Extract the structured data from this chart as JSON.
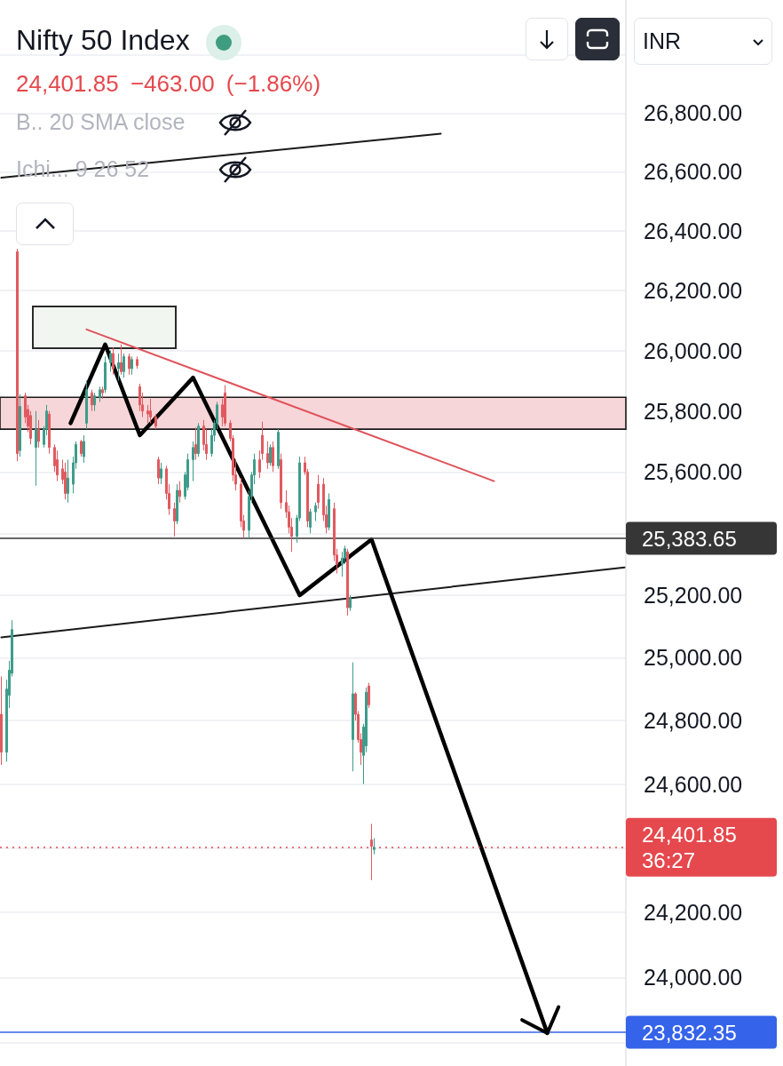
{
  "chart_data": {
    "type": "candlestick",
    "title": "Nifty 50 Index",
    "subtitle": "24,401.85 −463.00 (−1.86%)",
    "annotations": [
      "B.. 20 SMA close",
      "Ichi... 9 26 52",
      "INR"
    ],
    "categories": [
      null,
      null,
      null,
      null,
      null,
      null,
      null,
      null,
      null,
      null,
      null,
      null,
      null,
      null,
      null,
      null,
      null,
      null,
      null,
      null,
      null,
      null,
      null,
      null,
      null,
      null,
      null,
      null,
      null,
      null,
      null,
      null,
      null,
      null,
      null,
      null,
      null,
      null,
      null,
      null,
      null,
      null,
      null,
      null,
      null,
      null,
      null,
      null,
      null,
      null,
      null,
      null,
      null,
      null,
      null,
      null,
      null,
      null,
      null,
      null,
      null,
      null,
      null,
      null,
      null,
      null,
      null,
      null,
      null,
      null,
      null,
      null,
      null,
      null,
      null,
      null,
      null,
      null,
      null,
      null,
      null,
      null,
      null,
      null,
      null,
      null,
      null,
      null,
      null,
      null,
      null,
      null,
      null,
      null,
      null,
      null,
      null,
      null,
      null,
      null,
      null,
      null,
      null,
      null,
      null,
      null,
      null,
      null,
      null,
      null,
      null,
      null,
      null,
      null,
      null,
      null,
      null,
      null,
      null,
      null,
      null,
      null,
      null,
      null,
      null,
      null,
      null,
      null,
      null,
      null,
      null,
      null,
      null,
      null,
      null,
      null,
      null,
      null,
      null,
      null,
      null,
      null,
      null,
      null,
      null,
      null,
      null,
      null,
      null,
      null,
      null,
      null,
      null,
      null,
      null,
      null,
      null,
      null,
      null,
      null,
      null,
      null,
      null,
      null,
      null,
      null,
      null,
      null,
      null,
      null,
      null,
      null,
      null,
      null,
      null,
      null,
      null,
      null,
      null,
      null,
      null,
      null,
      null,
      null,
      null,
      null,
      null,
      null,
      null,
      null,
      null,
      null,
      null,
      null,
      null,
      null,
      null,
      null,
      null,
      null,
      null,
      null,
      null,
      null,
      null,
      null,
      null,
      null,
      null,
      null,
      null,
      null,
      null,
      null,
      null,
      null,
      null,
      null,
      null,
      null,
      null,
      null,
      null,
      null,
      null,
      null,
      null,
      null,
      null,
      null,
      null,
      null,
      null,
      null,
      null
    ],
    "ohlc": [
      [
        24820,
        24940,
        24660,
        24700
      ],
      null,
      [
        24700,
        24930,
        24670,
        24900
      ],
      [
        24880,
        24990,
        24840,
        24960
      ],
      [
        24950,
        25120,
        24940,
        25090
      ],
      null,
      [
        26330,
        26340,
        25635,
        25660
      ],
      [
        25670,
        25855,
        25650,
        25815
      ],
      null,
      [
        25850,
        25860,
        25760,
        25780
      ],
      [
        25805,
        25820,
        25730,
        25750
      ],
      [
        25785,
        25800,
        25690,
        25710
      ],
      null,
      [
        25680,
        25800,
        25555,
        25740
      ],
      [
        25740,
        25770,
        25680,
        25700
      ],
      null,
      [
        25690,
        25750,
        25680,
        25740
      ],
      [
        25740,
        25820,
        25720,
        25800
      ],
      [
        25790,
        25800,
        25660,
        25680
      ],
      null,
      [
        25680,
        25690,
        25600,
        25620
      ],
      [
        25640,
        25670,
        25570,
        25590
      ],
      null,
      [
        25610,
        25640,
        25560,
        25575
      ],
      [
        25600,
        25630,
        25510,
        25530
      ],
      [
        25530,
        25640,
        25500,
        25580
      ],
      null,
      [
        25560,
        25650,
        25530,
        25630
      ],
      [
        25630,
        25700,
        25610,
        25690
      ],
      null,
      [
        25700,
        25705,
        25650,
        25660
      ],
      [
        25650,
        25720,
        25630,
        25700
      ],
      [
        25760,
        25900,
        25740,
        25870
      ],
      null,
      [
        25860,
        25870,
        25800,
        25820
      ],
      [
        25820,
        25860,
        25800,
        25850
      ],
      null,
      [
        25845,
        25880,
        25830,
        25870
      ],
      [
        25870,
        25880,
        25840,
        25860
      ],
      [
        25870,
        25980,
        25860,
        25960
      ],
      null,
      [
        25960,
        26000,
        25930,
        25990
      ],
      [
        25990,
        26010,
        25920,
        25940
      ],
      null,
      [
        25940,
        25990,
        25900,
        25960
      ],
      [
        25960,
        26020,
        25920,
        25930
      ],
      [
        25930,
        25990,
        25910,
        25980
      ],
      null,
      [
        25980,
        25990,
        25920,
        25940
      ],
      [
        25940,
        25980,
        25920,
        25970
      ],
      null,
      [
        25970,
        25980,
        25940,
        25950
      ],
      [
        25880,
        25890,
        25800,
        25820
      ],
      [
        25820,
        25860,
        25780,
        25800
      ],
      null,
      [
        25800,
        25820,
        25760,
        25790
      ],
      [
        25800,
        25840,
        25760,
        25780
      ],
      null,
      [
        25780,
        25790,
        25740,
        25750
      ],
      [
        25640,
        25650,
        25560,
        25580
      ],
      [
        25580,
        25630,
        25560,
        25610
      ],
      null,
      [
        25610,
        25620,
        25510,
        25530
      ],
      [
        25530,
        25560,
        25460,
        25480
      ],
      null,
      [
        25480,
        25500,
        25390,
        25440
      ],
      [
        25440,
        25560,
        25430,
        25540
      ],
      [
        25540,
        25570,
        25500,
        25520
      ],
      null,
      [
        25520,
        25600,
        25510,
        25590
      ],
      [
        25550,
        25660,
        25540,
        25640
      ],
      null,
      [
        25640,
        25700,
        25570,
        25680
      ],
      [
        25690,
        25745,
        25640,
        25660
      ],
      [
        25660,
        25760,
        25650,
        25750
      ],
      null,
      [
        25750,
        25770,
        25670,
        25690
      ],
      [
        25690,
        25740,
        25640,
        25660
      ],
      null,
      [
        25660,
        25740,
        25650,
        25720
      ],
      [
        25720,
        25770,
        25700,
        25760
      ],
      [
        25760,
        25830,
        25740,
        25820
      ],
      null,
      [
        25820,
        25840,
        25750,
        25780
      ],
      [
        25860,
        25885,
        25750,
        25760
      ],
      null,
      [
        25760,
        25770,
        25700,
        25710
      ],
      [
        25710,
        25720,
        25570,
        25590
      ],
      [
        25590,
        25640,
        25540,
        25560
      ],
      null,
      [
        25560,
        25580,
        25420,
        25440
      ],
      [
        25440,
        25460,
        25385,
        25410
      ],
      null,
      [
        25410,
        25540,
        25385,
        25520
      ],
      [
        25520,
        25600,
        25500,
        25590
      ],
      [
        25590,
        25660,
        25560,
        25640
      ],
      null,
      [
        25640,
        25670,
        25580,
        25600
      ],
      [
        25720,
        25765,
        25640,
        25660
      ],
      null,
      [
        25660,
        25700,
        25610,
        25630
      ],
      [
        25630,
        25690,
        25620,
        25680
      ],
      [
        25680,
        25700,
        25600,
        25620
      ],
      null,
      [
        25620,
        25740,
        25610,
        25730
      ],
      [
        25640,
        25660,
        25480,
        25500
      ],
      null,
      [
        25500,
        25540,
        25450,
        25470
      ],
      [
        25470,
        25490,
        25400,
        25420
      ],
      [
        25420,
        25450,
        25340,
        25390
      ],
      null,
      [
        25390,
        25460,
        25370,
        25450
      ],
      [
        25450,
        25650,
        25440,
        25630
      ],
      null,
      [
        25630,
        25650,
        25590,
        25600
      ],
      [
        25600,
        25610,
        25420,
        25440
      ],
      [
        25420,
        25480,
        25400,
        25470
      ],
      null,
      [
        25470,
        25500,
        25440,
        25490
      ],
      [
        25560,
        25590,
        25480,
        25500
      ],
      null,
      [
        25560,
        25580,
        25440,
        25460
      ],
      [
        25460,
        25490,
        25400,
        25420
      ],
      [
        25420,
        25530,
        25410,
        25510
      ],
      null,
      [
        25480,
        25500,
        25310,
        25330
      ],
      [
        25330,
        25350,
        25270,
        25300
      ],
      null,
      [
        25300,
        25340,
        25260,
        25320
      ],
      [
        25320,
        25360,
        25300,
        25350
      ],
      [
        25340,
        25350,
        25135,
        25160
      ],
      [
        25160,
        25200,
        25150,
        25190
      ],
      [
        24740,
        24985,
        24640,
        24885
      ],
      [
        24885,
        24890,
        24800,
        24820
      ],
      [
        24820,
        24830,
        24730,
        24740
      ],
      [
        24740,
        24760,
        24660,
        24700
      ],
      [
        24690,
        24790,
        24600,
        24780
      ],
      [
        24720,
        24905,
        24700,
        24890
      ],
      [
        24910,
        24920,
        24840,
        24850
      ],
      [
        24425,
        24475,
        24300,
        24405
      ],
      [
        24395,
        24430,
        24380,
        24401.85
      ],
      null,
      null,
      null,
      null,
      null,
      null,
      null,
      null,
      null,
      null,
      null,
      null,
      null,
      null,
      null,
      null,
      null,
      null,
      null,
      null,
      null,
      null,
      null,
      null,
      null,
      null,
      null,
      null,
      null,
      null,
      null,
      null,
      null,
      null,
      null,
      null,
      null,
      null,
      null,
      null,
      null,
      null,
      null,
      null,
      null,
      null,
      null,
      null,
      null,
      null,
      null,
      null,
      null,
      null,
      null,
      null,
      null,
      null,
      null,
      null,
      null,
      null,
      null,
      null,
      null,
      null,
      null,
      null,
      null,
      null,
      null,
      null,
      null,
      null,
      null,
      null,
      null,
      null,
      null,
      null,
      null,
      null,
      null,
      null,
      null,
      null,
      null,
      null,
      null,
      null,
      null,
      null,
      null,
      null
    ],
    "colors": [
      "#e05a60",
      null,
      "#3f9c8a",
      "#3f9c8a",
      "#3f9c8a",
      null,
      "#e05a60",
      "#3f9c8a",
      null,
      "#e05a60",
      "#e05a60",
      "#e05a60",
      null,
      "#3f9c8a",
      "#e05a60",
      null,
      "#3f9c8a",
      "#3f9c8a",
      "#e05a60",
      null,
      "#e05a60",
      "#e05a60",
      null,
      "#e05a60",
      "#e05a60",
      "#3f9c8a",
      null,
      "#3f9c8a",
      "#3f9c8a",
      null,
      "#e05a60",
      "#3f9c8a",
      "#3f9c8a",
      null,
      "#e05a60",
      "#3f9c8a",
      null,
      "#3f9c8a",
      "#e05a60",
      "#3f9c8a",
      null,
      "#3f9c8a",
      "#e05a60",
      null,
      "#3f9c8a",
      "#e05a60",
      "#3f9c8a",
      null,
      "#e05a60",
      "#3f9c8a",
      null,
      "#e05a60",
      "#e05a60",
      "#e05a60",
      null,
      "#e05a60",
      "#e05a60",
      null,
      "#e05a60",
      "#e05a60",
      "#3f9c8a",
      null,
      "#e05a60",
      "#e05a60",
      null,
      "#e05a60",
      "#3f9c8a",
      "#e05a60",
      null,
      "#3f9c8a",
      "#3f9c8a",
      null,
      "#3f9c8a",
      "#e05a60",
      "#3f9c8a",
      null,
      "#e05a60",
      "#e05a60",
      null,
      "#3f9c8a",
      "#3f9c8a",
      "#3f9c8a",
      null,
      "#e05a60",
      "#e05a60",
      null,
      "#e05a60",
      "#e05a60",
      "#e05a60",
      null,
      "#e05a60",
      "#e05a60",
      null,
      "#3f9c8a",
      "#3f9c8a",
      "#3f9c8a",
      null,
      "#e05a60",
      "#e05a60",
      null,
      "#e05a60",
      "#3f9c8a",
      "#e05a60",
      null,
      "#3f9c8a",
      "#e05a60",
      null,
      "#e05a60",
      "#e05a60",
      "#e05a60",
      null,
      "#3f9c8a",
      "#3f9c8a",
      null,
      "#e05a60",
      "#e05a60",
      "#3f9c8a",
      null,
      "#3f9c8a",
      "#e05a60",
      null,
      "#e05a60",
      "#e05a60",
      "#3f9c8a",
      null,
      "#e05a60",
      "#e05a60",
      null,
      "#3f9c8a",
      "#3f9c8a",
      "#e05a60",
      "#3f9c8a",
      "#3f9c8a",
      "#e05a60",
      "#e05a60",
      "#e05a60",
      "#3f9c8a",
      "#3f9c8a",
      "#e05a60",
      "#e05a60",
      "#3f9c8a",
      null,
      null,
      null,
      null,
      null,
      null,
      null,
      null,
      null,
      null,
      null,
      null,
      null,
      null,
      null,
      null,
      null,
      null,
      null,
      null,
      null,
      null,
      null,
      null,
      null,
      null,
      null,
      null,
      null,
      null,
      null,
      null,
      null,
      null,
      null,
      null,
      null,
      null,
      null,
      null,
      null,
      null,
      null,
      null,
      null,
      null,
      null,
      null,
      null,
      null,
      null,
      null,
      null,
      null,
      null,
      null,
      null,
      null,
      null,
      null,
      null,
      null,
      null,
      null,
      null,
      null,
      null,
      null,
      null,
      null,
      null,
      null,
      null,
      null,
      null,
      null,
      null,
      null,
      null,
      null,
      null,
      null,
      null,
      null,
      null,
      null,
      null,
      null,
      null,
      null,
      null,
      null,
      null,
      null
    ],
    "series": [
      {
        "type": "line",
        "color": "#1a1a1a",
        "values": [
          26580,
          null,
          null,
          null,
          null,
          null,
          null,
          null,
          null,
          null,
          null,
          null,
          null,
          null,
          null,
          null,
          null,
          null,
          null,
          null,
          null,
          null,
          null,
          null,
          null,
          null,
          null,
          null,
          null,
          null,
          null,
          null,
          null,
          null,
          null,
          null,
          null,
          null,
          null,
          null,
          null,
          null,
          null,
          null,
          null,
          null,
          null,
          null,
          null,
          null,
          null,
          null,
          null,
          null,
          null,
          null,
          null,
          null,
          null,
          null,
          null,
          null,
          null,
          null,
          null,
          null,
          null,
          null,
          null,
          null,
          null,
          null,
          null,
          null,
          null,
          null,
          null,
          null,
          null,
          null,
          null,
          null,
          null,
          null,
          null,
          null,
          null,
          null,
          null,
          null,
          null,
          null,
          null,
          null,
          null,
          null,
          null,
          null,
          null,
          null,
          null,
          null,
          null,
          null,
          null,
          null,
          null,
          null,
          null,
          null,
          null,
          null,
          null,
          null,
          null,
          null,
          null,
          null,
          null,
          null,
          null,
          null,
          null,
          null,
          null,
          null,
          null,
          null,
          null,
          null,
          null,
          null,
          null,
          null,
          null,
          null,
          null,
          null,
          null,
          null,
          null,
          null,
          null,
          null,
          null,
          null,
          null,
          null,
          null,
          null,
          null,
          null,
          null,
          null,
          null,
          null,
          null,
          null,
          null,
          null,
          null,
          null,
          null,
          null,
          null,
          26730,
          null,
          null,
          null,
          null,
          null,
          null,
          null,
          null,
          null,
          null,
          null,
          null,
          null,
          null,
          null,
          null,
          null,
          null,
          null,
          null,
          null,
          null,
          null,
          null,
          null,
          null,
          null,
          null,
          null,
          null,
          null,
          null,
          null,
          null,
          null,
          null,
          null,
          null,
          null,
          null,
          null,
          null,
          null,
          null,
          null,
          null,
          null,
          null,
          null,
          null,
          null,
          null,
          null,
          null,
          null,
          null,
          null,
          null,
          null,
          null,
          null,
          null,
          null,
          null,
          null,
          null,
          null,
          null,
          null
        ]
      },
      {
        "type": "line",
        "color": "#1a1a1a",
        "values": [
          25065,
          null,
          null,
          null,
          null,
          null,
          null,
          null,
          null,
          null,
          null,
          null,
          null,
          null,
          null,
          null,
          null,
          null,
          null,
          null,
          null,
          null,
          null,
          null,
          null,
          null,
          null,
          null,
          null,
          null,
          null,
          null,
          null,
          null,
          null,
          null,
          null,
          null,
          null,
          null,
          null,
          null,
          null,
          null,
          null,
          null,
          null,
          null,
          null,
          null,
          null,
          null,
          null,
          null,
          null,
          null,
          null,
          null,
          null,
          null,
          null,
          null,
          null,
          null,
          null,
          null,
          null,
          null,
          null,
          null,
          null,
          null,
          null,
          null,
          null,
          null,
          null,
          null,
          null,
          null,
          null,
          null,
          null,
          null,
          null,
          null,
          null,
          null,
          null,
          null,
          null,
          null,
          null,
          null,
          null,
          null,
          null,
          null,
          null,
          null,
          null,
          null,
          null,
          null,
          null,
          null,
          null,
          null,
          null,
          null,
          null,
          null,
          null,
          null,
          null,
          null,
          null,
          null,
          null,
          null,
          null,
          null,
          null,
          null,
          null,
          null,
          null,
          null,
          null,
          null,
          null,
          null,
          null,
          null,
          null,
          null,
          null,
          null,
          null,
          null,
          null,
          null,
          null,
          null,
          null,
          null,
          null,
          null,
          null,
          null,
          null,
          null,
          null,
          null,
          null,
          null,
          null,
          null,
          null,
          null,
          null,
          null,
          null,
          null,
          null,
          null,
          null,
          null,
          null,
          null,
          null,
          null,
          null,
          null,
          null,
          null,
          null,
          null,
          null,
          null,
          null,
          null,
          null,
          null,
          null,
          null,
          null,
          null,
          null,
          null,
          null,
          null,
          null,
          null,
          null,
          null,
          null,
          null,
          null,
          null,
          null,
          null,
          null,
          null,
          null,
          null,
          null,
          null,
          null,
          null,
          null,
          null,
          null,
          null,
          null,
          null,
          null,
          null,
          null,
          null,
          null,
          null,
          null,
          null,
          null,
          null,
          null,
          null,
          null,
          null,
          null,
          null,
          null,
          null,
          25290
        ]
      },
      {
        "type": "line",
        "color": "#e0525a",
        "values": [
          null,
          null,
          null,
          null,
          null,
          null,
          null,
          null,
          null,
          null,
          null,
          null,
          null,
          null,
          null,
          null,
          null,
          null,
          null,
          null,
          null,
          null,
          null,
          null,
          null,
          null,
          null,
          null,
          null,
          null,
          null,
          null,
          26070,
          null,
          null,
          null,
          null,
          null,
          null,
          null,
          null,
          null,
          null,
          null,
          null,
          null,
          null,
          null,
          null,
          null,
          null,
          null,
          null,
          null,
          null,
          null,
          null,
          null,
          null,
          null,
          null,
          null,
          null,
          null,
          null,
          null,
          null,
          null,
          null,
          null,
          null,
          null,
          null,
          null,
          null,
          null,
          null,
          null,
          null,
          null,
          null,
          null,
          null,
          null,
          null,
          null,
          null,
          null,
          null,
          null,
          null,
          null,
          null,
          null,
          null,
          null,
          null,
          null,
          null,
          null,
          null,
          null,
          null,
          null,
          null,
          null,
          null,
          null,
          null,
          null,
          null,
          null,
          null,
          null,
          null,
          null,
          null,
          null,
          null,
          null,
          null,
          null,
          null,
          null,
          null,
          null,
          null,
          null,
          null,
          null,
          null,
          null,
          null,
          null,
          null,
          null,
          null,
          null,
          null,
          null,
          null,
          null,
          null,
          null,
          null,
          null,
          null,
          null,
          null,
          null,
          null,
          null,
          null,
          null,
          null,
          null,
          null,
          null,
          null,
          null,
          null,
          null,
          null,
          null,
          null,
          null,
          null,
          null,
          null,
          null,
          null,
          null,
          null,
          null,
          null,
          null,
          null,
          null,
          null,
          null,
          null,
          null,
          null,
          null,
          null,
          25570,
          null,
          null,
          null,
          null,
          null,
          null,
          null,
          null,
          null,
          null,
          null,
          null,
          null,
          null,
          null,
          null,
          null,
          null,
          null,
          null,
          null,
          null,
          null,
          null,
          null,
          null,
          null,
          null,
          null,
          null,
          null,
          null,
          null,
          null,
          null,
          null,
          null,
          null,
          null,
          null,
          null,
          null,
          null,
          null,
          null,
          null,
          null,
          null,
          null
        ]
      },
      {
        "type": "line",
        "color": "#000000",
        "values": [
          null,
          null,
          null,
          null,
          null,
          null,
          null,
          null,
          null,
          null,
          null,
          null,
          null,
          null,
          null,
          null,
          null,
          null,
          null,
          null,
          null,
          null,
          null,
          null,
          null,
          null,
          25760,
          null,
          null,
          null,
          null,
          null,
          null,
          null,
          null,
          null,
          null,
          null,
          null,
          26020,
          null,
          null,
          null,
          null,
          null,
          null,
          null,
          null,
          null,
          null,
          null,
          null,
          25720,
          null,
          null,
          null,
          null,
          null,
          null,
          null,
          null,
          null,
          null,
          null,
          null,
          null,
          null,
          null,
          null,
          null,
          null,
          null,
          25910,
          null,
          null,
          null,
          null,
          null,
          null,
          null,
          null,
          null,
          null,
          null,
          null,
          null,
          null,
          null,
          null,
          null,
          null,
          null,
          null,
          null,
          null,
          null,
          null,
          null,
          null,
          null,
          null,
          null,
          null,
          null,
          null,
          null,
          null,
          null,
          null,
          null,
          null,
          null,
          25200,
          null,
          null,
          null,
          null,
          null,
          null,
          null,
          null,
          null,
          null,
          null,
          null,
          null,
          null,
          null,
          null,
          null,
          null,
          null,
          null,
          null,
          null,
          null,
          null,
          null,
          null,
          25380,
          null,
          null,
          null,
          null,
          null,
          null,
          null,
          null,
          null,
          null,
          null,
          null,
          null,
          null,
          null,
          null,
          null,
          null,
          null,
          null,
          null,
          null,
          null,
          null,
          null,
          null,
          null,
          null,
          null,
          null,
          null,
          null,
          null,
          null,
          null,
          null,
          null,
          null,
          null,
          null,
          null,
          null,
          null,
          null,
          null,
          null,
          null,
          null,
          null,
          null,
          null,
          null,
          null,
          null,
          null,
          null,
          null,
          null,
          null,
          null,
          null,
          null,
          null,
          null,
          null,
          23830,
          null,
          null,
          null,
          null,
          null,
          null,
          null,
          null,
          null,
          null,
          null,
          null,
          null,
          null,
          null,
          null,
          null,
          null,
          null,
          null,
          null,
          null,
          null,
          null,
          null,
          null,
          null,
          null,
          null
        ]
      }
    ],
    "ylim": [
      23730,
      27190
    ],
    "yticks": [
      {
        "value": 23800,
        "label": null
      },
      {
        "value": 24000,
        "label": "24,000.00"
      },
      {
        "value": 24200,
        "label": "24,200.00"
      },
      {
        "value": 24400,
        "label": null
      },
      {
        "value": 24600,
        "label": "24,600.00"
      },
      {
        "value": 24800,
        "label": "24,800.00"
      },
      {
        "value": 25000,
        "label": "25,000.00"
      },
      {
        "value": 25200,
        "label": "25,200.00"
      },
      {
        "value": 25400,
        "label": null
      },
      {
        "value": 25600,
        "label": "25,600.00"
      },
      {
        "value": 25800,
        "label": "25,800.00"
      },
      {
        "value": 26000,
        "label": "26,000.00"
      },
      {
        "value": 26200,
        "label": "26,200.00"
      },
      {
        "value": 26400,
        "label": "26,400.00"
      },
      {
        "value": 26600,
        "label": "26,600.00"
      },
      {
        "value": 26800,
        "label": "26,800.00"
      },
      {
        "value": 27000,
        "label": null
      }
    ],
    "ref_lines": [
      {
        "axis": "y",
        "value": 25383.65,
        "label": "25,383.65",
        "color": "#363636",
        "line_style": "solid"
      },
      {
        "axis": "y",
        "value": 24401.85,
        "label": "24,401.85\n36:27",
        "color": "#e5484d",
        "line_style": "dotted"
      },
      {
        "axis": "y",
        "value": 23832.35,
        "label": "23,832.35",
        "color": "#3563e9",
        "line_style": "solid"
      }
    ],
    "bands": [
      {
        "axis": "y",
        "from": 25740,
        "to": 25845,
        "color": "#f6d6d9"
      }
    ],
    "log": true,
    "grid": "y",
    "tick_labels": "y"
  }
}
